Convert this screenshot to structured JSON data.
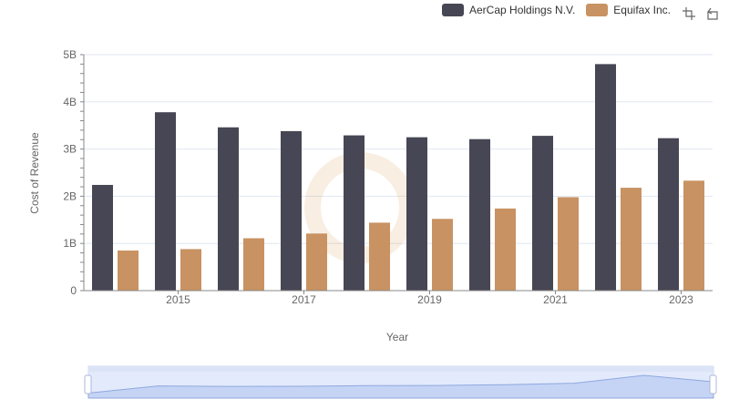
{
  "chart_data": {
    "type": "bar",
    "title": "",
    "xlabel": "Year",
    "ylabel": "Cost of Revenue",
    "categories": [
      "2014",
      "2015",
      "2016",
      "2017",
      "2018",
      "2019",
      "2020",
      "2021",
      "2022",
      "2023"
    ],
    "x_tick_labels": [
      "2015",
      "2017",
      "2019",
      "2021",
      "2023"
    ],
    "y_tick_labels": [
      "0",
      "1B",
      "2B",
      "3B",
      "4B",
      "5B"
    ],
    "ylim": [
      0,
      5000000000
    ],
    "grid": true,
    "legend_position": "top-right",
    "series": [
      {
        "name": "AerCap Holdings N.V.",
        "color": "#474654",
        "values": [
          2240000000,
          3780000000,
          3460000000,
          3380000000,
          3290000000,
          3250000000,
          3210000000,
          3280000000,
          4800000000,
          3230000000
        ]
      },
      {
        "name": "Equifax Inc.",
        "color": "#c89262",
        "values": [
          850000000,
          880000000,
          1110000000,
          1210000000,
          1440000000,
          1520000000,
          1740000000,
          1980000000,
          2180000000,
          2330000000
        ]
      }
    ]
  },
  "toolbox": {
    "zoom_icon": "data-zoom-icon",
    "restore_icon": "restore-icon"
  }
}
